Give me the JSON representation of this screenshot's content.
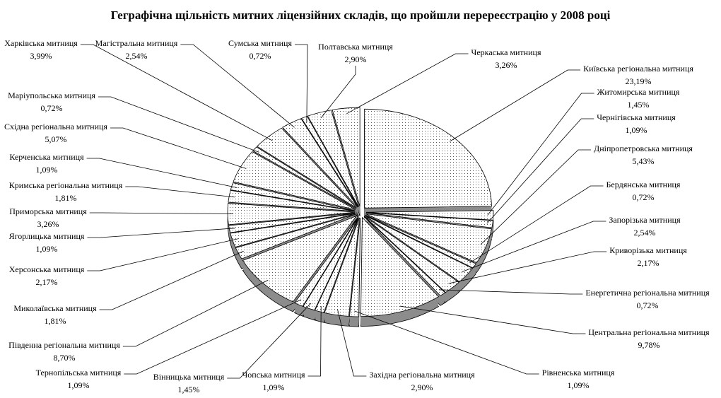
{
  "chart_data": {
    "type": "pie",
    "style": "3d-exploded",
    "title": "Геграфічна щільність митних ліцензійних складів, що пройшли перереєстрацію у 2008 році",
    "slices": [
      {
        "name": "Київська регіональна митниця",
        "value": 23.19,
        "label": "23,19%"
      },
      {
        "name": "Житомирська митниця",
        "value": 1.45,
        "label": "1,45%"
      },
      {
        "name": "Чернігівська митниця",
        "value": 1.09,
        "label": "1,09%"
      },
      {
        "name": "Дніпропетровська митниця",
        "value": 5.43,
        "label": "5,43%"
      },
      {
        "name": "Бердянська митниця",
        "value": 0.72,
        "label": "0,72%"
      },
      {
        "name": "Запорізька митниця",
        "value": 2.54,
        "label": "2,54%"
      },
      {
        "name": "Криворізька митниця",
        "value": 2.17,
        "label": "2,17%"
      },
      {
        "name": "Енергетична регіональна митниця",
        "value": 0.72,
        "label": "0,72%"
      },
      {
        "name": "Центральна регіональна митниця",
        "value": 9.78,
        "label": "9,78%"
      },
      {
        "name": "Рівненська митниця",
        "value": 1.09,
        "label": "1,09%"
      },
      {
        "name": "Західна регіональна митниця",
        "value": 2.9,
        "label": "2,90%"
      },
      {
        "name": "Чопська митниця",
        "value": 1.09,
        "label": "1,09%"
      },
      {
        "name": "Вінницька митниця",
        "value": 1.45,
        "label": "1,45%"
      },
      {
        "name": "Тернопільська митниця",
        "value": 1.09,
        "label": "1,09%"
      },
      {
        "name": "Південна регіональна митниця",
        "value": 8.7,
        "label": "8,70%"
      },
      {
        "name": "Миколаївська митниця",
        "value": 1.81,
        "label": "1,81%"
      },
      {
        "name": "Херсонська митниця",
        "value": 2.17,
        "label": "2,17%"
      },
      {
        "name": "Ягорлицька митниця",
        "value": 1.09,
        "label": "1,09%"
      },
      {
        "name": "Приморська митниця",
        "value": 3.26,
        "label": "3,26%"
      },
      {
        "name": "Кримська регіональна митниця",
        "value": 1.81,
        "label": "1,81%"
      },
      {
        "name": "Керченська митниця",
        "value": 1.09,
        "label": "1,09%"
      },
      {
        "name": "Східна регіональна митниця",
        "value": 5.07,
        "label": "5,07%"
      },
      {
        "name": "Маріупольська митниця",
        "value": 0.72,
        "label": "0,72%"
      },
      {
        "name": "Харківська митниця",
        "value": 3.99,
        "label": "3,99%"
      },
      {
        "name": "Магістральна митниця",
        "value": 2.54,
        "label": "2,54%"
      },
      {
        "name": "Сумська митниця",
        "value": 0.72,
        "label": "0,72%"
      },
      {
        "name": "Полтавська митниця",
        "value": 2.9,
        "label": "2,90%"
      },
      {
        "name": "Черкаська митниця",
        "value": 3.26,
        "label": "3,26%"
      }
    ],
    "colors": {
      "top": "#ffffff",
      "dots": "#555555",
      "side": "#8c8c8c",
      "outline": "#000000"
    }
  }
}
